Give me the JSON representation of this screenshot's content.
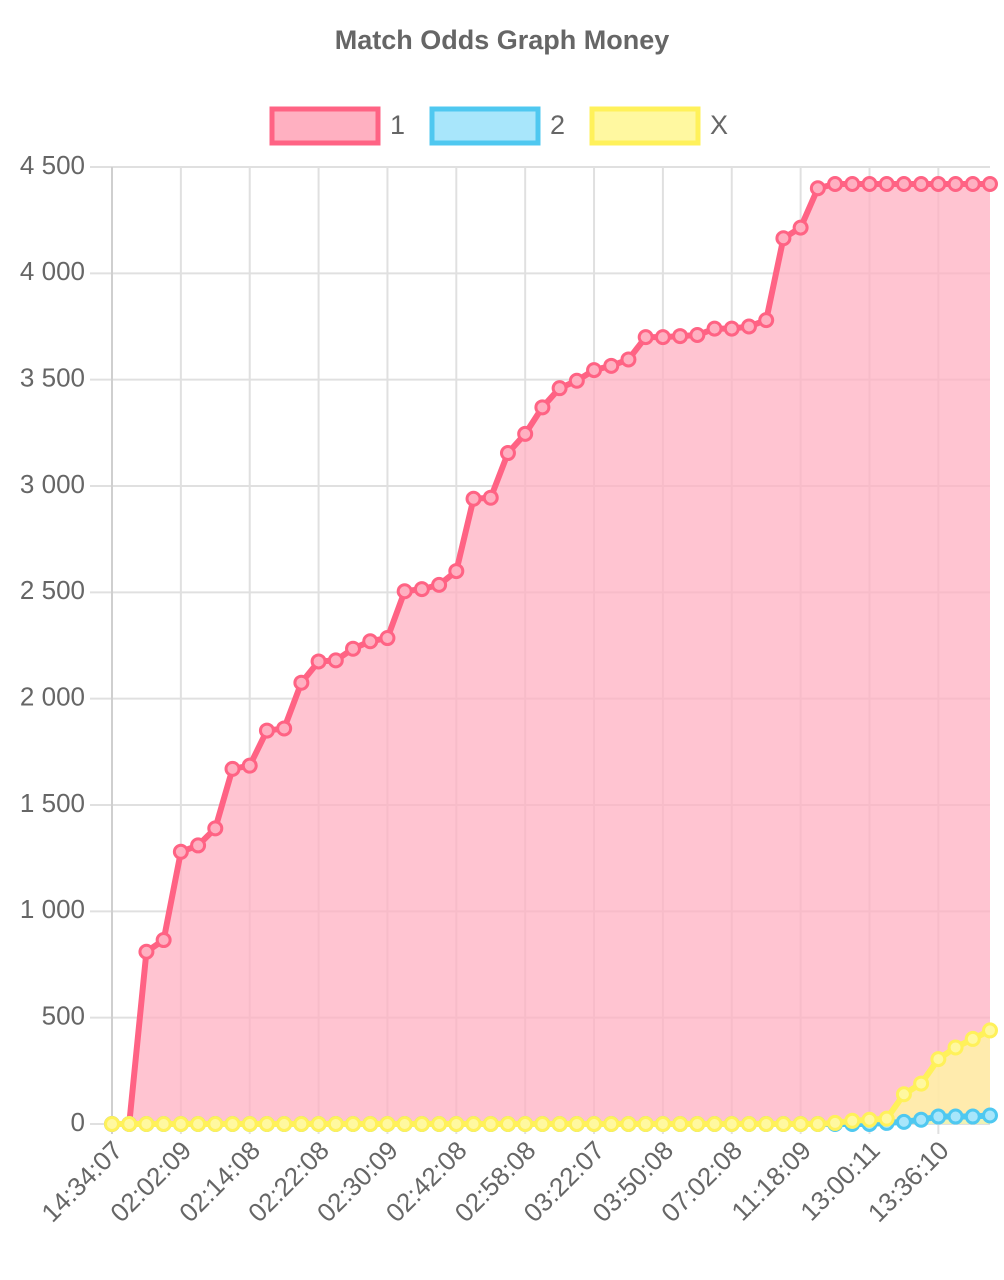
{
  "chart_data": {
    "type": "line",
    "title": "Match Odds Graph Money",
    "categories": [
      "14:34:07",
      null,
      null,
      null,
      "02:02:09",
      null,
      null,
      null,
      "02:14:08",
      null,
      null,
      null,
      "02:22:08",
      null,
      null,
      null,
      "02:30:09",
      null,
      null,
      null,
      "02:42:08",
      null,
      null,
      null,
      "02:58:08",
      null,
      null,
      null,
      "03:22:07",
      null,
      null,
      null,
      "03:50:08",
      null,
      null,
      null,
      "07:02:08",
      null,
      null,
      null,
      "11:18:09",
      null,
      null,
      null,
      "13:00:11",
      null,
      null,
      null,
      "13:36:10",
      null,
      null,
      null
    ],
    "series": [
      {
        "name": "1",
        "color": "#ff6384",
        "fill": "#ffb0c1",
        "values": [
          0,
          0,
          810,
          865,
          1280,
          1310,
          1390,
          1670,
          1685,
          1850,
          1860,
          2075,
          2175,
          2180,
          2235,
          2270,
          2285,
          2505,
          2515,
          2535,
          2600,
          2940,
          2945,
          3155,
          3245,
          3370,
          3460,
          3495,
          3545,
          3565,
          3595,
          3700,
          3700,
          3705,
          3710,
          3740,
          3740,
          3750,
          3780,
          4165,
          4215,
          4400,
          4420,
          4420,
          4420,
          4420,
          4420,
          4420,
          4420,
          4420,
          4420,
          4420
        ]
      },
      {
        "name": "2",
        "color": "#4fc8f0",
        "fill": "#a8e6fb",
        "values": [
          0,
          0,
          0,
          0,
          0,
          0,
          0,
          0,
          0,
          0,
          0,
          0,
          0,
          0,
          0,
          0,
          0,
          0,
          0,
          0,
          0,
          0,
          0,
          0,
          0,
          0,
          0,
          0,
          0,
          0,
          0,
          0,
          0,
          0,
          0,
          0,
          0,
          0,
          0,
          0,
          0,
          0,
          0,
          0,
          0,
          5,
          10,
          20,
          35,
          35,
          35,
          40
        ]
      },
      {
        "name": "X",
        "color": "#fff15a",
        "fill": "#fff8a0",
        "values": [
          0,
          0,
          0,
          0,
          0,
          0,
          0,
          0,
          0,
          0,
          0,
          0,
          0,
          0,
          0,
          0,
          0,
          0,
          0,
          0,
          0,
          0,
          0,
          0,
          0,
          0,
          0,
          0,
          0,
          0,
          0,
          0,
          0,
          0,
          0,
          0,
          0,
          0,
          0,
          0,
          0,
          0,
          5,
          15,
          20,
          25,
          140,
          190,
          305,
          360,
          400,
          440
        ]
      }
    ],
    "ylim": [
      0,
      4500
    ],
    "yticks": [
      0,
      500,
      {
        "value": 1000,
        "label": "1 000"
      },
      {
        "value": 1500,
        "label": "1 500"
      },
      {
        "value": 2000,
        "label": "2 000"
      },
      {
        "value": 2500,
        "label": "2 500"
      },
      {
        "value": 3000,
        "label": "3 000"
      },
      {
        "value": 3500,
        "label": "3 500"
      },
      {
        "value": 4000,
        "label": "4 000"
      },
      {
        "value": 4500,
        "label": "4 500"
      }
    ],
    "grid": true,
    "legend": "top"
  }
}
